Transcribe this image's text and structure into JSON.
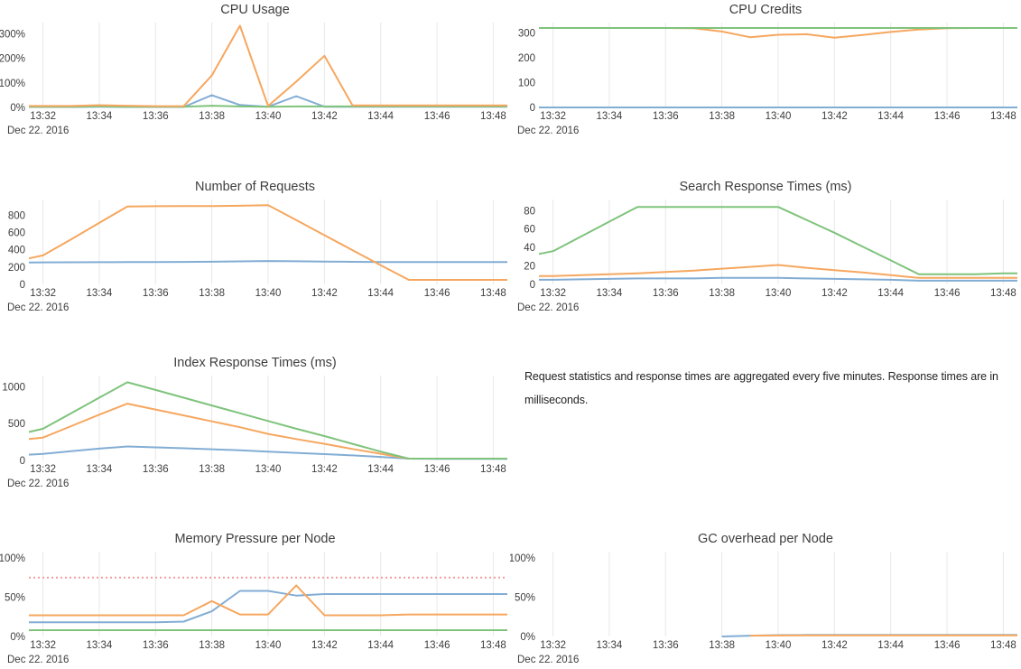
{
  "annotation": {
    "text": "Request statistics and response times are aggregated every five minutes. Response times are in milliseconds."
  },
  "x_axis": {
    "xlim": [
      31.5,
      48.5
    ],
    "tick_minutes": [
      32,
      34,
      36,
      38,
      40,
      42,
      44,
      46,
      48
    ],
    "tick_labels": [
      "13:32",
      "13:34",
      "13:36",
      "13:38",
      "13:40",
      "13:42",
      "13:44",
      "13:46",
      "13:48"
    ],
    "date_label": "Dec 22. 2016",
    "grid_color": "#e8e8e8"
  },
  "palette": {
    "blue": "#82add4",
    "orange": "#f6a75f",
    "green": "#7fc37c",
    "red": "#f29d9d",
    "tick_text": "#3d3d3d",
    "title_text": "#3e3e3e"
  },
  "chart_data": [
    {
      "type": "line",
      "title": "CPU Usage",
      "ylim": [
        0,
        345
      ],
      "y_ticks": [
        {
          "v": 0,
          "label": "0%"
        },
        {
          "v": 100,
          "label": "100%"
        },
        {
          "v": 200,
          "label": "200%"
        },
        {
          "v": 300,
          "label": "300%"
        }
      ],
      "series": [
        {
          "name": "blue",
          "color": "#82add4",
          "x": [
            31.5,
            32,
            33,
            34,
            35,
            36,
            37,
            38,
            39,
            40,
            41,
            42,
            43,
            44,
            45,
            46,
            47,
            48,
            48.5
          ],
          "y": [
            2,
            2,
            2,
            3,
            2,
            2,
            2,
            50,
            10,
            3,
            46,
            3,
            3,
            3,
            3,
            3,
            3,
            3,
            3
          ]
        },
        {
          "name": "green",
          "color": "#7fc37c",
          "x": [
            31.5,
            32,
            33,
            34,
            35,
            36,
            37,
            38,
            39,
            40,
            41,
            42,
            43,
            44,
            45,
            46,
            47,
            48,
            48.5
          ],
          "y": [
            3,
            3,
            3,
            4,
            3,
            3,
            3,
            7,
            4,
            3,
            4,
            4,
            4,
            4,
            4,
            4,
            4,
            4,
            4
          ]
        },
        {
          "name": "orange",
          "color": "#f6a75f",
          "x": [
            31.5,
            32,
            33,
            34,
            35,
            36,
            37,
            38,
            39,
            40,
            41,
            42,
            43,
            44,
            45,
            46,
            47,
            48,
            48.5
          ],
          "y": [
            6,
            6,
            6,
            9,
            7,
            5,
            5,
            130,
            332,
            6,
            105,
            210,
            8,
            8,
            8,
            8,
            8,
            8,
            8
          ]
        }
      ]
    },
    {
      "type": "line",
      "title": "CPU Credits",
      "ylim": [
        0,
        342
      ],
      "y_ticks": [
        {
          "v": 0,
          "label": "0"
        },
        {
          "v": 100,
          "label": "100"
        },
        {
          "v": 200,
          "label": "200"
        },
        {
          "v": 300,
          "label": "300"
        }
      ],
      "series": [
        {
          "name": "blue",
          "color": "#82add4",
          "x": [
            31.5,
            32,
            33,
            34,
            35,
            36,
            37,
            38,
            39,
            40,
            41,
            42,
            43,
            44,
            45,
            46,
            47,
            48,
            48.5
          ],
          "y": [
            0,
            0,
            0,
            0,
            0,
            0,
            0,
            0,
            0,
            0,
            0,
            0,
            0,
            0,
            0,
            0,
            0,
            0,
            0
          ]
        },
        {
          "name": "orange",
          "color": "#f6a75f",
          "x": [
            31.5,
            32,
            33,
            34,
            35,
            36,
            37,
            38,
            39,
            40,
            41,
            42,
            43,
            44,
            45,
            46,
            47,
            48,
            48.5
          ],
          "y": [
            320,
            320,
            320,
            320,
            320,
            320,
            319,
            306,
            283,
            293,
            295,
            281,
            292,
            304,
            314,
            319,
            320,
            320,
            320
          ]
        },
        {
          "name": "green",
          "color": "#7fc37c",
          "x": [
            31.5,
            32,
            33,
            34,
            35,
            36,
            37,
            38,
            39,
            40,
            41,
            42,
            43,
            44,
            45,
            46,
            47,
            48,
            48.5
          ],
          "y": [
            320,
            320,
            320,
            320,
            320,
            320,
            320,
            320,
            320,
            320,
            320,
            320,
            320,
            320,
            320,
            320,
            320,
            320,
            320
          ]
        }
      ]
    },
    {
      "type": "line",
      "title": "Number of Requests",
      "ylim": [
        0,
        980
      ],
      "y_ticks": [
        {
          "v": 0,
          "label": "0"
        },
        {
          "v": 200,
          "label": "200"
        },
        {
          "v": 400,
          "label": "400"
        },
        {
          "v": 600,
          "label": "600"
        },
        {
          "v": 800,
          "label": "800"
        }
      ],
      "series": [
        {
          "name": "blue",
          "color": "#82add4",
          "x": [
            31.5,
            32,
            33,
            34,
            35,
            36,
            37,
            38,
            39,
            40,
            41,
            42,
            43,
            44,
            45,
            46,
            47,
            48,
            48.5
          ],
          "y": [
            253,
            254,
            255,
            256,
            257,
            258,
            260,
            262,
            266,
            270,
            267,
            264,
            261,
            258,
            257,
            257,
            257,
            258,
            258
          ]
        },
        {
          "name": "orange",
          "color": "#f6a75f",
          "x": [
            31.5,
            32,
            33,
            34,
            35,
            36,
            37,
            38,
            39,
            40,
            41,
            42,
            43,
            44,
            45,
            46,
            47,
            48,
            48.5
          ],
          "y": [
            300,
            335,
            520,
            710,
            900,
            903,
            904,
            905,
            908,
            915,
            742,
            568,
            395,
            222,
            52,
            52,
            52,
            52,
            52
          ]
        }
      ]
    },
    {
      "type": "line",
      "title": "Search Response Times (ms)",
      "ylim": [
        0,
        92
      ],
      "y_ticks": [
        {
          "v": 0,
          "label": "0"
        },
        {
          "v": 20,
          "label": "20"
        },
        {
          "v": 40,
          "label": "40"
        },
        {
          "v": 60,
          "label": "60"
        },
        {
          "v": 80,
          "label": "80"
        }
      ],
      "series": [
        {
          "name": "blue",
          "color": "#82add4",
          "x": [
            31.5,
            32,
            33,
            34,
            35,
            36,
            37,
            38,
            39,
            40,
            41,
            42,
            43,
            44,
            45,
            46,
            47,
            48,
            48.5
          ],
          "y": [
            5,
            5,
            5.5,
            6,
            6.5,
            6.5,
            6.5,
            7,
            7,
            7,
            6.5,
            6,
            5.5,
            5,
            4,
            4,
            4,
            4,
            4
          ]
        },
        {
          "name": "orange",
          "color": "#f6a75f",
          "x": [
            31.5,
            32,
            33,
            34,
            35,
            36,
            37,
            38,
            39,
            40,
            41,
            42,
            43,
            44,
            45,
            46,
            47,
            48,
            48.5
          ],
          "y": [
            9,
            9,
            10,
            11,
            12,
            13.5,
            15,
            17,
            19,
            21,
            18,
            15.5,
            13,
            10,
            7,
            7,
            7,
            7,
            7
          ]
        },
        {
          "name": "green",
          "color": "#7fc37c",
          "x": [
            31.5,
            32,
            33,
            34,
            35,
            36,
            37,
            38,
            39,
            40,
            41,
            42,
            43,
            44,
            45,
            46,
            47,
            48,
            48.5
          ],
          "y": [
            33,
            36,
            52,
            68,
            84,
            84,
            84,
            84,
            84,
            84,
            70,
            56,
            41,
            26,
            11,
            11,
            11,
            12,
            12
          ]
        }
      ]
    },
    {
      "type": "line",
      "title": "Index Response Times (ms)",
      "ylim": [
        0,
        1150
      ],
      "y_ticks": [
        {
          "v": 0,
          "label": "0"
        },
        {
          "v": 500,
          "label": "500"
        },
        {
          "v": 1000,
          "label": "1000"
        }
      ],
      "series": [
        {
          "name": "blue",
          "color": "#82add4",
          "x": [
            31.5,
            32,
            33,
            34,
            35,
            36,
            37,
            38,
            39,
            40,
            41,
            42,
            43,
            44,
            45,
            46,
            47,
            48,
            48.5
          ],
          "y": [
            78,
            88,
            125,
            160,
            190,
            178,
            165,
            152,
            138,
            120,
            103,
            86,
            68,
            48,
            25,
            22,
            22,
            22,
            22
          ]
        },
        {
          "name": "orange",
          "color": "#f6a75f",
          "x": [
            31.5,
            32,
            33,
            34,
            35,
            36,
            37,
            38,
            39,
            40,
            41,
            42,
            43,
            44,
            45,
            46,
            47,
            48,
            48.5
          ],
          "y": [
            290,
            310,
            465,
            620,
            770,
            690,
            610,
            530,
            450,
            360,
            290,
            225,
            155,
            90,
            25,
            25,
            25,
            25,
            25
          ]
        },
        {
          "name": "green",
          "color": "#7fc37c",
          "x": [
            31.5,
            32,
            33,
            34,
            35,
            36,
            37,
            38,
            39,
            40,
            41,
            42,
            43,
            44,
            45,
            46,
            47,
            48,
            48.5
          ],
          "y": [
            385,
            430,
            640,
            850,
            1060,
            955,
            850,
            745,
            640,
            535,
            430,
            330,
            225,
            120,
            25,
            25,
            25,
            25,
            25
          ]
        }
      ]
    },
    {
      "type": "line",
      "title": "Memory Pressure per Node",
      "ylim": [
        0,
        108
      ],
      "y_ticks": [
        {
          "v": 0,
          "label": "0%"
        },
        {
          "v": 50,
          "label": "50%"
        },
        {
          "v": 100,
          "label": "100%"
        }
      ],
      "series": [
        {
          "name": "green",
          "color": "#7fc37c",
          "x": [
            31.5,
            32,
            33,
            34,
            35,
            36,
            37,
            38,
            39,
            40,
            41,
            42,
            43,
            44,
            45,
            46,
            47,
            48,
            48.5
          ],
          "y": [
            8,
            8,
            8,
            8,
            8,
            8,
            8,
            8,
            8,
            8,
            8,
            8,
            8,
            8,
            8,
            8,
            8,
            8,
            8
          ]
        },
        {
          "name": "blue",
          "color": "#82add4",
          "x": [
            31.5,
            32,
            33,
            34,
            35,
            36,
            37,
            38,
            39,
            40,
            41,
            42,
            43,
            44,
            45,
            46,
            47,
            48,
            48.5
          ],
          "y": [
            18,
            18,
            18,
            18,
            18,
            18,
            19,
            32,
            58,
            58,
            52,
            54,
            54,
            54,
            54,
            54,
            54,
            54,
            54
          ]
        },
        {
          "name": "orange",
          "color": "#f6a75f",
          "x": [
            31.5,
            32,
            33,
            34,
            35,
            36,
            37,
            38,
            39,
            40,
            41,
            42,
            43,
            44,
            45,
            46,
            47,
            48,
            48.5
          ],
          "y": [
            27,
            27,
            27,
            27,
            27,
            27,
            27,
            45,
            28,
            28,
            65,
            27,
            27,
            27,
            28,
            28,
            28,
            28,
            28
          ]
        },
        {
          "name": "threshold",
          "color": "#f29d9d",
          "dash": true,
          "x": [
            31.5,
            48.5
          ],
          "y": [
            75,
            75
          ]
        }
      ]
    },
    {
      "type": "line",
      "title": "GC overhead per Node",
      "ylim": [
        0,
        108
      ],
      "y_ticks": [
        {
          "v": 0,
          "label": "0%"
        },
        {
          "v": 50,
          "label": "50%"
        },
        {
          "v": 100,
          "label": "100%"
        }
      ],
      "series": [
        {
          "name": "blue",
          "color": "#82add4",
          "x": [
            38,
            39,
            40,
            41,
            42,
            43,
            44,
            45,
            46,
            47,
            48,
            48.5
          ],
          "y": [
            0,
            1,
            1.7,
            2,
            2,
            2,
            2,
            2,
            2,
            2,
            2,
            2
          ]
        },
        {
          "name": "orange",
          "color": "#f6a75f",
          "x": [
            39,
            40,
            41,
            42,
            43,
            44,
            45,
            46,
            47,
            48,
            48.5
          ],
          "y": [
            1.2,
            1.3,
            1.5,
            1.5,
            1.5,
            1.5,
            1.5,
            1.5,
            1.5,
            1.5,
            1.5
          ]
        }
      ]
    }
  ]
}
